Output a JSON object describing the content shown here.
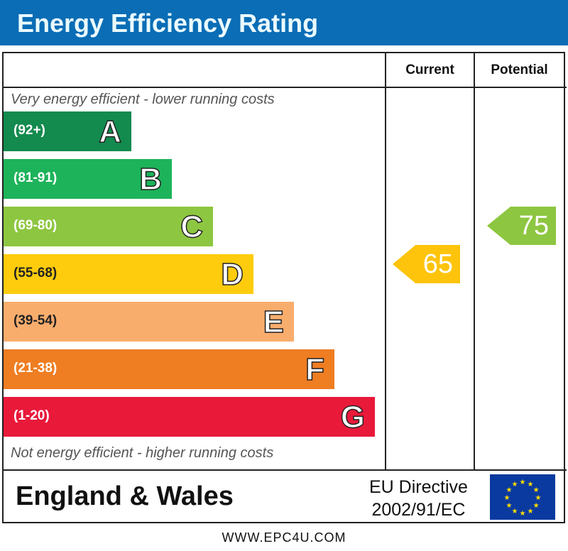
{
  "title": "Energy Efficiency Rating",
  "columns": {
    "current": "Current",
    "potential": "Potential"
  },
  "top_note": "Very energy efficient - lower running costs",
  "bottom_note": "Not energy efficient - higher running costs",
  "chart_data": {
    "type": "bar",
    "title": "Energy Efficiency Rating",
    "bands": [
      {
        "range": "(92+)",
        "letter": "A",
        "color": "#138a4e"
      },
      {
        "range": "(81-91)",
        "letter": "B",
        "color": "#1db35a"
      },
      {
        "range": "(69-80)",
        "letter": "C",
        "color": "#8dc641"
      },
      {
        "range": "(55-68)",
        "letter": "D",
        "color": "#fecc0d"
      },
      {
        "range": "(39-54)",
        "letter": "E",
        "color": "#f9ad6d"
      },
      {
        "range": "(21-38)",
        "letter": "F",
        "color": "#ef7d22"
      },
      {
        "range": "(1-20)",
        "letter": "G",
        "color": "#e9193a"
      }
    ],
    "current": {
      "value": 65,
      "band": "D",
      "color": "#fec40b"
    },
    "potential": {
      "value": 75,
      "band": "C",
      "color": "#8dc641"
    }
  },
  "footer": {
    "region": "England & Wales",
    "directive_line1": "EU Directive",
    "directive_line2": "2002/91/EC",
    "flag": "eu-flag-icon"
  },
  "url": "WWW.EPC4U.COM"
}
